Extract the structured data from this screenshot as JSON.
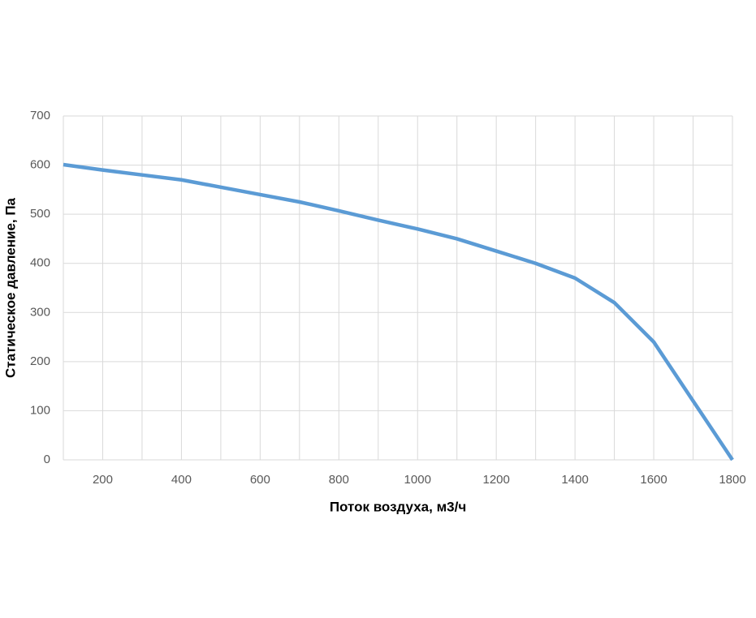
{
  "chart_data": {
    "type": "line",
    "x_label": "Поток воздуха, м3/ч",
    "y_label": "Статическое давление, Па",
    "x": [
      100,
      200,
      300,
      400,
      500,
      600,
      700,
      800,
      900,
      1000,
      1100,
      1200,
      1300,
      1400,
      1500,
      1600,
      1700,
      1800
    ],
    "series": [
      {
        "color": "#5b9bd5",
        "values": [
          601,
          590,
          580,
          570,
          555,
          540,
          525,
          507,
          488,
          470,
          450,
          425,
          400,
          370,
          320,
          240,
          120,
          0
        ]
      }
    ],
    "xlim": [
      100,
      1800
    ],
    "xticks": [
      200,
      400,
      600,
      800,
      1000,
      1200,
      1400,
      1600,
      1800
    ],
    "xminorticks": [
      100,
      300,
      500,
      700,
      900,
      1100,
      1300,
      1500,
      1700
    ],
    "ylim": [
      0,
      700
    ],
    "yticks": [
      0,
      100,
      200,
      300,
      400,
      500,
      600,
      700
    ],
    "grid": true
  }
}
